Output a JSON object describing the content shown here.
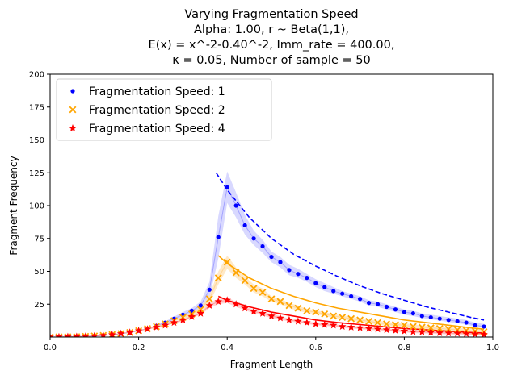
{
  "chart_data": {
    "type": "scatter",
    "title_lines": [
      "Varying Fragmentation Speed",
      "Alpha:  1.00, r ~  Beta(1,1),",
      "E(x) = x^-2-0.40^-2, Imm_rate = 400.00,",
      "κ =  0.05, Number of sample = 50"
    ],
    "xlabel": "Fragment Length",
    "ylabel": "Fragment Frequency",
    "xlim": [
      0.0,
      1.0
    ],
    "ylim": [
      0,
      200
    ],
    "x_ticks": [
      "0.0",
      "0.2",
      "0.4",
      "0.6",
      "0.8",
      "1.0"
    ],
    "y_ticks": [
      "25",
      "50",
      "75",
      "100",
      "125",
      "150",
      "175",
      "200"
    ],
    "legend_position": "top-left",
    "x": [
      0.0,
      0.02,
      0.04,
      0.06,
      0.08,
      0.1,
      0.12,
      0.14,
      0.16,
      0.18,
      0.2,
      0.22,
      0.24,
      0.26,
      0.28,
      0.3,
      0.32,
      0.34,
      0.36,
      0.38,
      0.4,
      0.42,
      0.44,
      0.46,
      0.48,
      0.5,
      0.52,
      0.54,
      0.56,
      0.58,
      0.6,
      0.62,
      0.64,
      0.66,
      0.68,
      0.7,
      0.72,
      0.74,
      0.76,
      0.78,
      0.8,
      0.82,
      0.84,
      0.86,
      0.88,
      0.9,
      0.92,
      0.94,
      0.96,
      0.98
    ],
    "series": [
      {
        "name": "Fragmentation Speed: 1",
        "marker": "dot",
        "color": "#0000ff",
        "band_color": "#c8c8ff",
        "values": [
          0,
          0.1,
          0.2,
          0.3,
          0.5,
          0.8,
          1.2,
          1.8,
          2.6,
          3.5,
          4.8,
          6.5,
          8.5,
          11,
          14,
          17,
          20,
          24,
          36,
          76,
          114,
          100,
          85,
          75,
          69,
          61,
          57,
          51,
          48,
          45,
          41,
          38,
          35,
          33,
          31,
          29,
          26,
          25,
          23,
          21,
          19,
          18,
          16,
          15,
          14,
          13,
          12,
          11,
          9,
          8
        ],
        "band_low": [
          0,
          0.1,
          0.2,
          0.3,
          0.5,
          0.8,
          1.2,
          1.8,
          2.6,
          3.5,
          4.8,
          6.5,
          8,
          10,
          12.5,
          15,
          18,
          21,
          30,
          60,
          102,
          91,
          78,
          70,
          64,
          57,
          53,
          47,
          45,
          42,
          38,
          35,
          33,
          31,
          29,
          27,
          24,
          23,
          21,
          19,
          17,
          16,
          14.5,
          13.5,
          12.5,
          11.5,
          10.5,
          9.5,
          8,
          7
        ],
        "band_high": [
          0,
          0.1,
          0.2,
          0.3,
          0.5,
          0.8,
          1.2,
          1.8,
          2.6,
          3.5,
          4.8,
          6.5,
          9,
          12,
          15.5,
          19,
          22,
          27,
          42,
          92,
          126,
          110,
          93,
          81,
          74,
          65,
          61,
          55,
          52,
          48,
          44,
          41,
          38,
          35,
          33,
          31,
          28,
          27,
          25,
          23,
          21,
          20,
          18,
          17,
          16,
          15,
          14,
          13,
          11,
          10
        ],
        "fit_x": [
          0.375,
          0.4,
          0.45,
          0.5,
          0.55,
          0.6,
          0.65,
          0.7,
          0.75,
          0.8,
          0.85,
          0.9,
          0.95,
          0.98
        ],
        "fit_y": [
          125,
          112,
          91,
          75,
          63,
          54,
          46,
          39,
          33,
          28,
          23,
          19,
          15,
          13
        ]
      },
      {
        "name": "Fragmentation Speed: 2",
        "marker": "x",
        "color": "#ffa500",
        "band_color": "#ffe0b0",
        "values": [
          0,
          0.1,
          0.2,
          0.3,
          0.5,
          0.8,
          1.2,
          1.8,
          2.6,
          3.5,
          4.8,
          6.5,
          8,
          10,
          12.5,
          15,
          17.5,
          21,
          29,
          45,
          57,
          49,
          43,
          37,
          34,
          29,
          27,
          24,
          22,
          20,
          19,
          17.5,
          16,
          15,
          14,
          13,
          12,
          11,
          10,
          9.5,
          9,
          8,
          7.5,
          7,
          6.5,
          6,
          5.5,
          5,
          4.5,
          4
        ],
        "band_low": [
          0,
          0.1,
          0.2,
          0.3,
          0.5,
          0.8,
          1.2,
          1.8,
          2.6,
          3.5,
          4.8,
          6.5,
          7.5,
          9.5,
          12,
          14,
          16,
          19,
          26,
          40,
          52,
          45,
          40,
          34,
          31,
          27,
          25,
          22,
          20,
          18.5,
          17.5,
          16,
          14.5,
          13.5,
          12.5,
          11.5,
          10.5,
          9.5,
          8.5,
          8,
          7.5,
          6.5,
          6,
          5.5,
          5,
          4.5,
          4,
          3.5,
          3,
          2.5
        ],
        "band_high": [
          0,
          0.1,
          0.2,
          0.3,
          0.5,
          0.8,
          1.2,
          1.8,
          2.6,
          3.5,
          4.8,
          6.5,
          8.5,
          10.5,
          13,
          16,
          19,
          23,
          32,
          50,
          62,
          53,
          46,
          40,
          37,
          31,
          29,
          26,
          24,
          21.5,
          20.5,
          19,
          17.5,
          16.5,
          15.5,
          14.5,
          13.5,
          12.5,
          11.5,
          11,
          10.5,
          9.5,
          9,
          8.5,
          8,
          7.5,
          7,
          6.5,
          6,
          5.5
        ],
        "fit_x": [
          0.38,
          0.4,
          0.45,
          0.5,
          0.55,
          0.6,
          0.65,
          0.7,
          0.75,
          0.8,
          0.85,
          0.9,
          0.95,
          0.98
        ],
        "fit_y": [
          62,
          56,
          45,
          37,
          31,
          26,
          22,
          19,
          16,
          13,
          11,
          9,
          7,
          6
        ]
      },
      {
        "name": "Fragmentation Speed: 4",
        "marker": "star",
        "color": "#ff0000",
        "band_color": "#ffc0c0",
        "values": [
          0,
          0.1,
          0.2,
          0.3,
          0.5,
          0.8,
          1.2,
          1.8,
          2.6,
          3.5,
          4.8,
          6,
          7.5,
          9,
          11,
          13,
          15.5,
          18,
          24,
          27,
          28,
          25,
          22,
          19.5,
          18,
          16,
          14.5,
          13,
          12,
          11,
          10,
          9.5,
          9,
          8,
          7.5,
          7,
          6.5,
          6,
          5.5,
          5,
          4.5,
          4,
          3.8,
          3.5,
          3.2,
          3,
          2.8,
          2.5,
          2.2,
          2
        ],
        "band_low": [
          0,
          0.1,
          0.2,
          0.3,
          0.5,
          0.8,
          1.2,
          1.8,
          2.6,
          3.5,
          4.8,
          6,
          7,
          8.5,
          10.5,
          12,
          14.5,
          17,
          22,
          25,
          26,
          23,
          20.5,
          18,
          16.5,
          14.5,
          13,
          12,
          11,
          10,
          9,
          8.5,
          8,
          7,
          6.5,
          6,
          5.5,
          5,
          4.5,
          4,
          3.5,
          3,
          2.8,
          2.5,
          2.2,
          2,
          1.8,
          1.5,
          1.2,
          1
        ],
        "band_high": [
          0,
          0.1,
          0.2,
          0.3,
          0.5,
          0.8,
          1.2,
          1.8,
          2.6,
          3.5,
          4.8,
          6,
          8,
          9.5,
          11.5,
          14,
          16.5,
          19,
          26,
          29,
          30,
          27,
          23.5,
          21,
          19.5,
          17.5,
          16,
          14,
          13,
          12,
          11,
          10.5,
          10,
          9,
          8.5,
          8,
          7.5,
          7,
          6.5,
          6,
          5.5,
          5,
          4.8,
          4.5,
          4.2,
          4,
          3.8,
          3.5,
          3.2,
          3
        ],
        "fit_x": [
          0.38,
          0.4,
          0.45,
          0.5,
          0.55,
          0.6,
          0.65,
          0.7,
          0.75,
          0.8,
          0.85,
          0.9,
          0.95,
          0.98
        ],
        "fit_y": [
          31,
          28,
          23,
          19,
          16,
          13,
          11,
          9.5,
          8,
          6.5,
          5.5,
          4.5,
          3.5,
          3
        ]
      }
    ]
  }
}
